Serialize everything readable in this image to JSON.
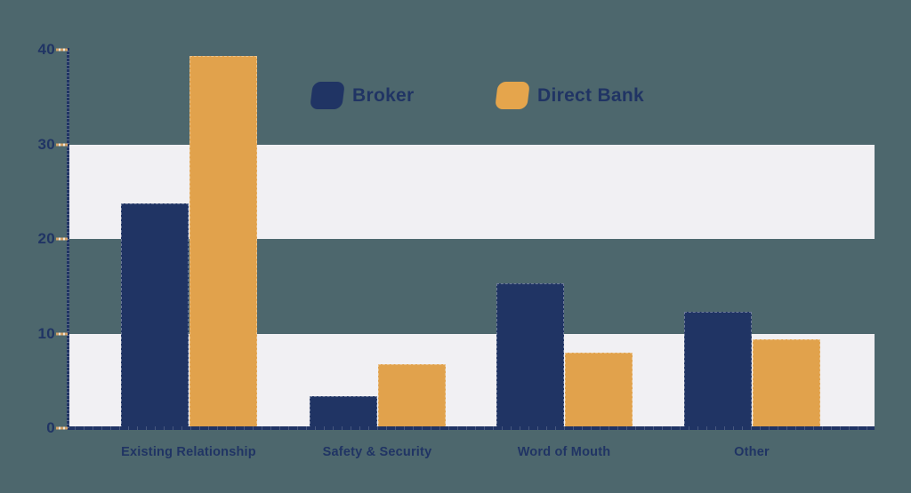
{
  "background_color": "#4d676d",
  "band_color": "#f1f0f3",
  "axis_color": "#203464",
  "text_color": "#203464",
  "tick_dash_color": "#d4a268",
  "tick_dash_gap_color": "#efe6d8",
  "legend": {
    "items": [
      {
        "label": "Broker",
        "color": "#203464"
      },
      {
        "label": "Direct Bank",
        "color": "#e5a54c"
      }
    ]
  },
  "chart_data": {
    "type": "bar",
    "title": "",
    "xlabel": "",
    "ylabel": "",
    "categories": [
      "Existing Relationship",
      "Safety & Security",
      "Word of Mouth",
      "Other"
    ],
    "series": [
      {
        "name": "Broker",
        "color": "#203464",
        "values": [
          23.8,
          3.4,
          15.3,
          12.3
        ]
      },
      {
        "name": "Direct Bank",
        "color": "#e1a24c",
        "values": [
          39.3,
          6.8,
          8.0,
          9.4
        ]
      }
    ],
    "ylim": [
      0,
      40
    ],
    "yticks": [
      0,
      10,
      20,
      30,
      40
    ],
    "grid": "alternating horizontal bands",
    "band_ranges": [
      [
        0,
        10
      ],
      [
        20,
        30
      ]
    ],
    "legend_position": "top-center"
  }
}
